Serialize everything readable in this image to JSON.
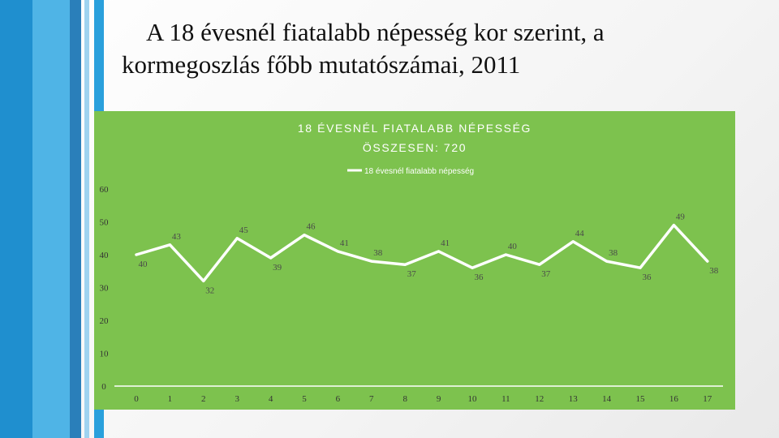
{
  "slide": {
    "title_line1": "A 18 évesnél fiatalabb népesség kor szerint, a",
    "title_line2": "kormegoszlás főbb mutatószámai, 2011"
  },
  "colors": {
    "panel": "#7dc24e",
    "line": "#ffffff",
    "axis": "#ffffff"
  },
  "chart_data": {
    "type": "line",
    "title_line1": "18 ÉVESNÉL FIATALABB NÉPESSÉG",
    "title_line2": "ÖSSZESEN: 720",
    "legend_position": "top",
    "x": [
      0,
      1,
      2,
      3,
      4,
      5,
      6,
      7,
      8,
      9,
      10,
      11,
      12,
      13,
      14,
      15,
      16,
      17
    ],
    "x_tick_labels": [
      "0",
      "1",
      "2",
      "3",
      "4",
      "5",
      "6",
      "7",
      "8",
      "9",
      "10",
      "11",
      "12",
      "13",
      "14",
      "15",
      "16",
      "17"
    ],
    "ylim": [
      0,
      60
    ],
    "y_ticks": [
      0,
      10,
      20,
      30,
      40,
      50,
      60
    ],
    "grid": false,
    "series": [
      {
        "name": "18 évesnél fiatalabb népesség",
        "values": [
          40,
          43,
          32,
          45,
          39,
          46,
          41,
          38,
          37,
          41,
          36,
          40,
          37,
          44,
          38,
          36,
          49,
          38
        ]
      }
    ]
  }
}
